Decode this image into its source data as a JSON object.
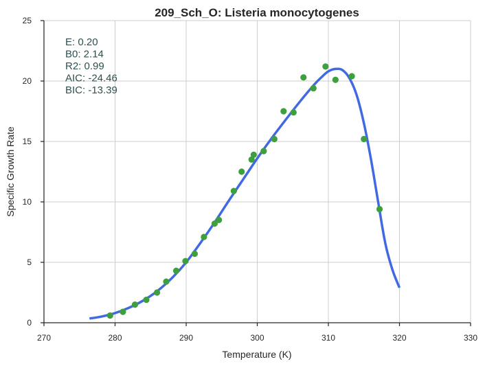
{
  "chart_data": {
    "type": "scatter",
    "title": "209_Sch_O: Listeria monocytogenes",
    "xlabel": "Temperature (K)",
    "ylabel": "Specific Growth Rate",
    "xlim": [
      270,
      330
    ],
    "ylim": [
      0,
      25
    ],
    "xticks": [
      270,
      280,
      290,
      300,
      310,
      320,
      330
    ],
    "yticks": [
      0,
      5,
      10,
      15,
      20,
      25
    ],
    "grid": true,
    "colors": {
      "points": "#3f9f3f",
      "curve": "#4169e1",
      "stats_text": "#2f4f4f",
      "grid": "#cccccc",
      "axes": "#262626"
    },
    "stats": [
      {
        "label": "E:",
        "value": "0.20"
      },
      {
        "label": "B0:",
        "value": "2.14"
      },
      {
        "label": "R2:",
        "value": "0.99"
      },
      {
        "label": "AIC:",
        "value": "-24.46"
      },
      {
        "label": "BIC:",
        "value": "-13.39"
      }
    ],
    "series": [
      {
        "kind": "points",
        "x": [
          279.3,
          281.1,
          282.8,
          284.4,
          285.9,
          287.2,
          288.6,
          289.9,
          291.2,
          292.5,
          294.0,
          294.6,
          296.7,
          297.8,
          299.2,
          299.5,
          300.9,
          302.4,
          303.7,
          305.1,
          306.5,
          307.9,
          309.6,
          311.0,
          313.3,
          315.0,
          317.2
        ],
        "y": [
          0.6,
          0.9,
          1.5,
          1.9,
          2.5,
          3.4,
          4.3,
          5.1,
          5.7,
          7.1,
          8.2,
          8.5,
          10.9,
          12.5,
          13.5,
          13.9,
          14.2,
          15.2,
          17.5,
          17.4,
          20.3,
          19.4,
          21.2,
          20.1,
          20.4,
          15.2,
          9.4
        ]
      },
      {
        "kind": "fit-line",
        "x": [
          276.4,
          278,
          280,
          282,
          284,
          286,
          288,
          290,
          292,
          294,
          296,
          298,
          300,
          302,
          304,
          306,
          308,
          309,
          310,
          311,
          312,
          313,
          314,
          315,
          316,
          317,
          318,
          319,
          320
        ],
        "y": [
          0.35,
          0.5,
          0.8,
          1.25,
          1.85,
          2.65,
          3.7,
          5.0,
          6.6,
          8.3,
          10.1,
          11.85,
          13.6,
          15.25,
          16.8,
          18.3,
          19.7,
          20.3,
          20.8,
          21.0,
          20.9,
          20.2,
          18.8,
          16.5,
          13.5,
          10.0,
          6.6,
          4.4,
          2.9
        ]
      }
    ]
  }
}
